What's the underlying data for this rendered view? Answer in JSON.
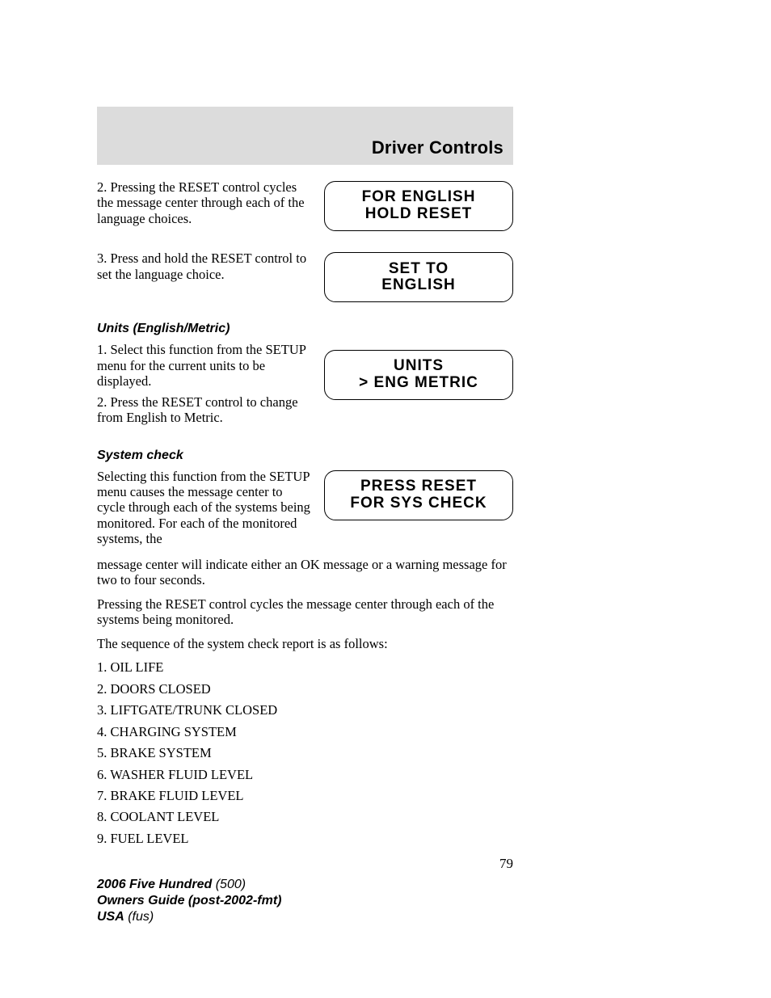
{
  "header": {
    "title": "Driver Controls",
    "band_color": "#dcdcdc",
    "title_fontsize": 22
  },
  "sections": {
    "language": {
      "step2_text": "2. Pressing the RESET control cycles the message center through each of the language choices.",
      "step3_text": "3. Press and hold the RESET control to set the language choice.",
      "display1": {
        "line1": "FOR ENGLISH",
        "line2": "HOLD RESET"
      },
      "display2": {
        "line1": "SET TO",
        "line2": "ENGLISH"
      }
    },
    "units": {
      "heading": "Units (English/Metric)",
      "step1_text": "1. Select this function from the SETUP menu for the current units to be displayed.",
      "step2_text": "2. Press the RESET control to change from English to Metric.",
      "display": {
        "line1": "UNITS",
        "line2": "> ENG  METRIC"
      }
    },
    "system_check": {
      "heading": "System check",
      "intro_para": "Selecting this function from the SETUP menu causes the message center to cycle through each of the systems being monitored. For each of the monitored systems, the message center will indicate either an OK message or a warning message for two to four seconds.",
      "display": {
        "line1": "PRESS RESET",
        "line2": "FOR SYS CHECK"
      },
      "para2": "Pressing the RESET control cycles the message center through each of the systems being monitored.",
      "para3": "The sequence of the system check report is as follows:",
      "sequence": [
        "1. OIL LIFE",
        "2. DOORS CLOSED",
        "3. LIFTGATE/TRUNK CLOSED",
        "4. CHARGING SYSTEM",
        "5. BRAKE SYSTEM",
        "6. WASHER FLUID LEVEL",
        "7. BRAKE FLUID LEVEL",
        "8. COOLANT LEVEL",
        "9. FUEL LEVEL"
      ]
    }
  },
  "page_number": "79",
  "footer": {
    "line1_bold": "2006 Five Hundred",
    "line1_rest": " (500)",
    "line2": "Owners Guide (post-2002-fmt)",
    "line3_bold": "USA",
    "line3_rest": " (fus)"
  },
  "styling": {
    "body_font": "Georgia/Times",
    "body_fontsize": 16.5,
    "subhead_font": "Helvetica bold italic",
    "display_font": "Arial Narrow / condensed uppercase",
    "display_border_radius": 14,
    "display_border_color": "#000000",
    "page_bg": "#ffffff",
    "text_color": "#000000"
  }
}
